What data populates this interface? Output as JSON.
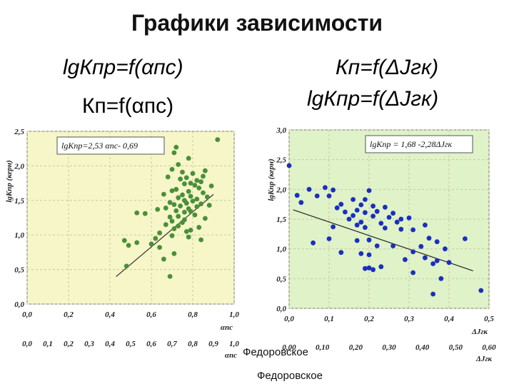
{
  "page": {
    "title": "Графики зависимости",
    "formulas": [
      "lgКпр=f(αпс)",
      "Кп=f(αпс)",
      "Кп=f(ΔJгк)",
      "lgКпр=f(ΔJгк)"
    ],
    "captions": [
      "Федоровское",
      "Федоровское"
    ]
  },
  "chart_data": [
    {
      "type": "scatter",
      "title": "",
      "ylabel": "lgKпр (керн)",
      "xlabel": "αпс",
      "xlim": [
        0.0,
        1.0
      ],
      "ylim": [
        0.0,
        2.5
      ],
      "xticks": [
        "0,0",
        "0,2",
        "0,4",
        "0,6",
        "0,8",
        "1,0"
      ],
      "yticks": [
        "0,0",
        "0,5",
        "1,0",
        "1,5",
        "2,0",
        "2,5"
      ],
      "secondary_xticks": [
        "0,0",
        "0,1",
        "0,2",
        "0,3",
        "0,4",
        "0,5",
        "0,6",
        "0,7",
        "0,8",
        "0,9",
        "1,0"
      ],
      "secondary_xlabel": "αпс",
      "equation": "lgKпр=2,53 αпс- 0,69",
      "trendline": {
        "slope": 2.53,
        "intercept": -0.69,
        "x_range": [
          0.43,
          0.9
        ]
      },
      "colors": {
        "points": "#4a8f3a",
        "background": "#f6f6c8",
        "line": "#333333"
      },
      "x": [
        0.92,
        0.72,
        0.71,
        0.78,
        0.73,
        0.7,
        0.86,
        0.75,
        0.8,
        0.85,
        0.68,
        0.77,
        0.74,
        0.82,
        0.84,
        0.79,
        0.76,
        0.81,
        0.89,
        0.83,
        0.72,
        0.7,
        0.78,
        0.85,
        0.66,
        0.75,
        0.79,
        0.87,
        0.73,
        0.82,
        0.76,
        0.8,
        0.69,
        0.77,
        0.84,
        0.71,
        0.88,
        0.74,
        0.82,
        0.67,
        0.78,
        0.63,
        0.72,
        0.79,
        0.76,
        0.53,
        0.57,
        0.81,
        0.73,
        0.69,
        0.86,
        0.76,
        0.7,
        0.75,
        0.67,
        0.73,
        0.83,
        0.71,
        0.79,
        0.77,
        0.64,
        0.7,
        0.78,
        0.62,
        0.84,
        0.47,
        0.53,
        0.6,
        0.49,
        0.64,
        0.71,
        0.66,
        0.48,
        0.69
      ],
      "y": [
        2.38,
        2.27,
        2.19,
        2.11,
        2.02,
        1.95,
        1.93,
        1.91,
        1.89,
        1.85,
        1.84,
        1.83,
        1.81,
        1.79,
        1.77,
        1.75,
        1.74,
        1.72,
        1.71,
        1.68,
        1.66,
        1.64,
        1.63,
        1.61,
        1.59,
        1.58,
        1.56,
        1.55,
        1.54,
        1.52,
        1.5,
        1.49,
        1.47,
        1.46,
        1.45,
        1.44,
        1.43,
        1.42,
        1.41,
        1.39,
        1.38,
        1.37,
        1.35,
        1.34,
        1.33,
        1.32,
        1.31,
        1.29,
        1.27,
        1.26,
        1.24,
        1.22,
        1.2,
        1.18,
        1.15,
        1.13,
        1.11,
        1.09,
        1.07,
        1.05,
        1.03,
        0.99,
        0.97,
        0.95,
        0.93,
        0.92,
        0.89,
        0.87,
        0.85,
        0.82,
        0.73,
        0.65,
        0.55,
        0.4
      ]
    },
    {
      "type": "scatter",
      "title": "",
      "ylabel": "lgKпр (керн)",
      "xlabel": "ΔJгк",
      "xlim": [
        0.0,
        0.5
      ],
      "ylim": [
        0.0,
        3.0
      ],
      "xticks": [
        "0,0",
        "0,1",
        "0,2",
        "0,3",
        "0,4",
        "0,5"
      ],
      "yticks": [
        "0,0",
        "0,5",
        "1,0",
        "1,5",
        "2,0",
        "2,5",
        "3,0"
      ],
      "secondary_xticks": [
        "0,00",
        "0,10",
        "0,20",
        "0,30",
        "0,40",
        "0,50",
        "0,60"
      ],
      "secondary_xlabel": "ΔJгк",
      "equation": "lgKпр = 1,68 -2,28ΔJгк",
      "trendline": {
        "slope": -2.28,
        "intercept": 1.68,
        "x_range": [
          0.01,
          0.46
        ]
      },
      "colors": {
        "points": "#1a2fbf",
        "background": "#dff2c8",
        "line": "#222222"
      },
      "x": [
        0.0,
        0.05,
        0.09,
        0.11,
        0.2,
        0.02,
        0.07,
        0.1,
        0.16,
        0.19,
        0.03,
        0.13,
        0.18,
        0.21,
        0.24,
        0.12,
        0.17,
        0.22,
        0.14,
        0.19,
        0.26,
        0.16,
        0.21,
        0.25,
        0.3,
        0.28,
        0.15,
        0.27,
        0.18,
        0.23,
        0.17,
        0.34,
        0.11,
        0.19,
        0.24,
        0.28,
        0.31,
        0.35,
        0.1,
        0.2,
        0.17,
        0.37,
        0.44,
        0.06,
        0.26,
        0.22,
        0.33,
        0.39,
        0.31,
        0.13,
        0.18,
        0.2,
        0.34,
        0.29,
        0.37,
        0.4,
        0.36,
        0.23,
        0.2,
        0.19,
        0.21,
        0.31,
        0.38,
        0.48,
        0.36
      ],
      "y": [
        2.4,
        2.0,
        2.03,
        1.99,
        1.98,
        1.9,
        1.89,
        1.89,
        1.83,
        1.83,
        1.78,
        1.75,
        1.74,
        1.72,
        1.7,
        1.69,
        1.65,
        1.63,
        1.62,
        1.61,
        1.6,
        1.56,
        1.55,
        1.53,
        1.52,
        1.5,
        1.5,
        1.45,
        1.45,
        1.43,
        1.4,
        1.4,
        1.37,
        1.36,
        1.35,
        1.33,
        1.32,
        1.18,
        1.17,
        1.15,
        1.14,
        1.12,
        1.17,
        1.1,
        1.05,
        1.05,
        1.04,
        1.0,
        0.95,
        0.94,
        0.92,
        0.9,
        0.85,
        0.82,
        0.8,
        0.77,
        0.75,
        0.7,
        0.68,
        0.67,
        0.65,
        0.6,
        0.5,
        0.3,
        0.24
      ]
    }
  ]
}
